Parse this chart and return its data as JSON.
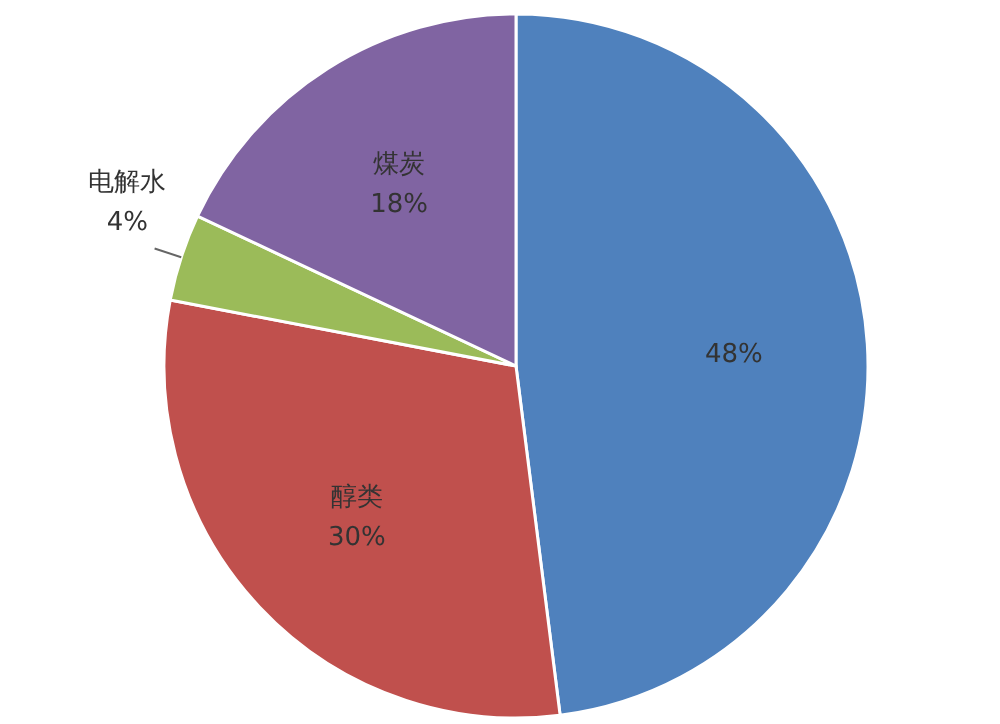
{
  "chart_data": {
    "type": "pie",
    "categories": [
      null,
      "醇类",
      "电解水",
      "煤炭"
    ],
    "values": [
      48,
      30,
      4,
      18
    ],
    "colors": [
      "#4f81bd",
      "#c0504d",
      "#9bbb59",
      "#8064a2"
    ],
    "value_labels": [
      "48%",
      "30%",
      "4%",
      "18%"
    ]
  }
}
